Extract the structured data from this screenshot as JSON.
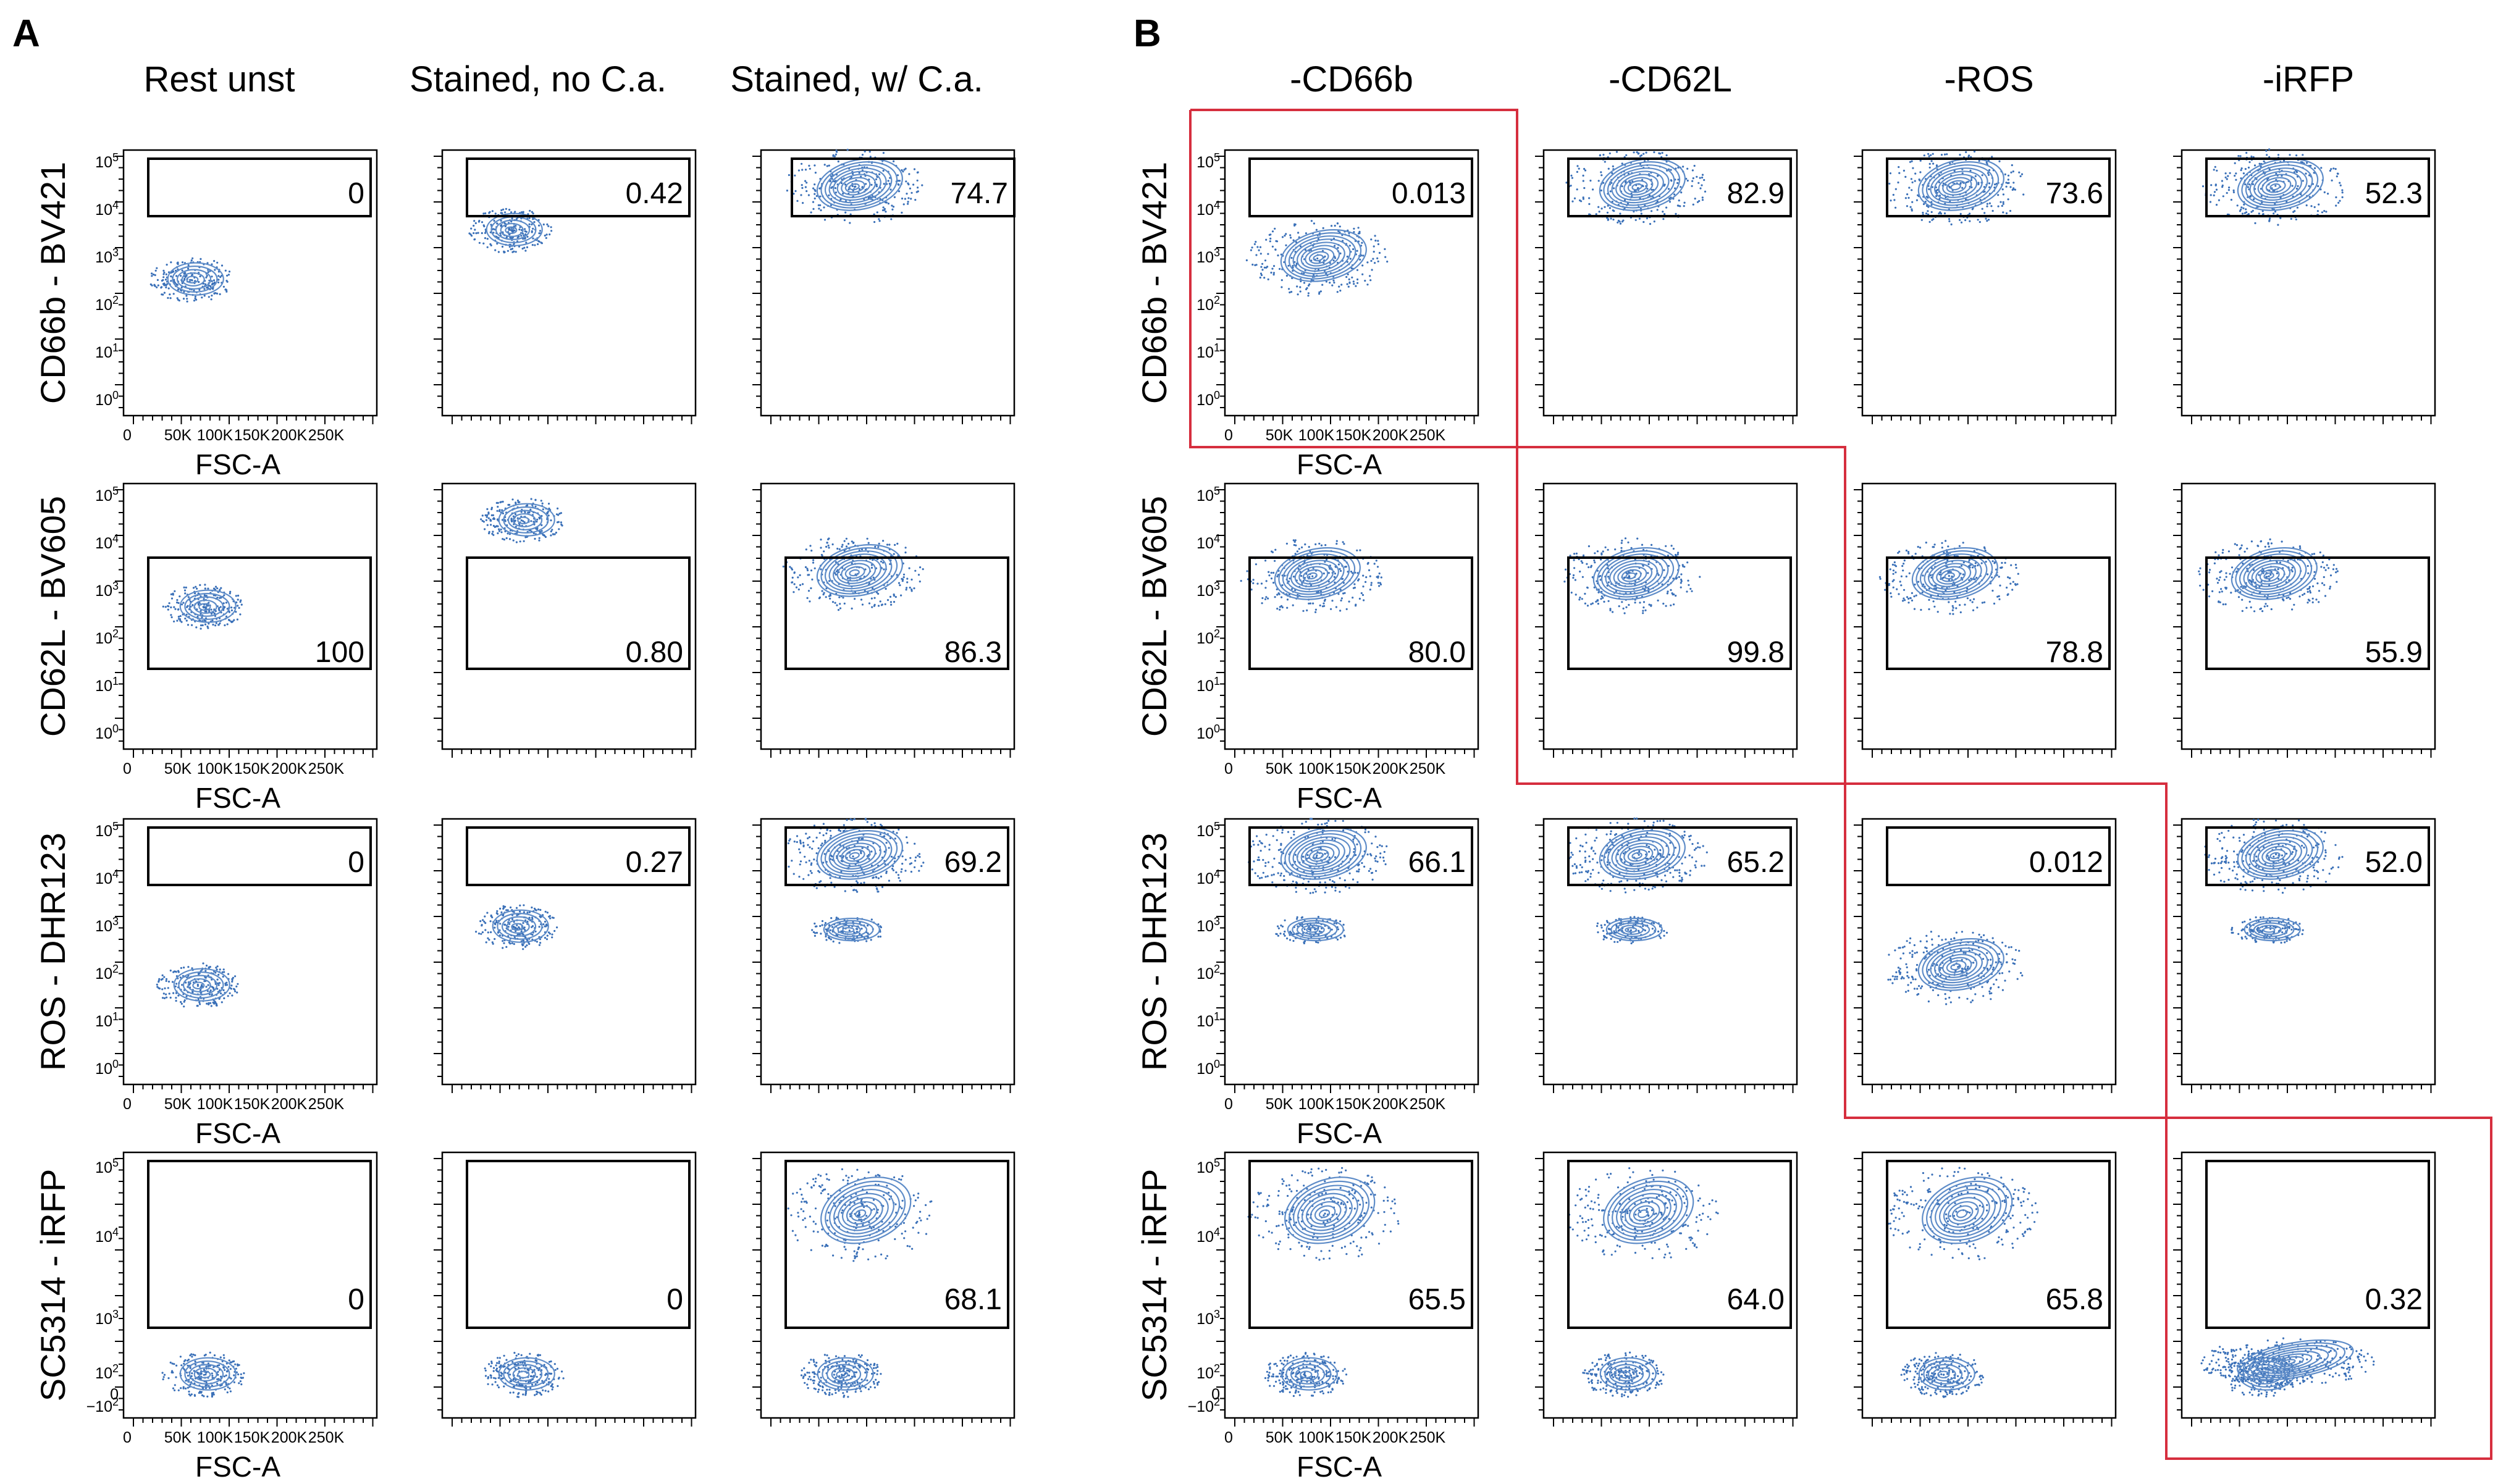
{
  "panels": [
    {
      "letter": "A",
      "columns": [
        "Rest unst",
        "Stained, no C.a.",
        "Stained, w/ C.a."
      ],
      "rows": [
        {
          "ylabel": "CD66b - BV421",
          "gates": [
            "0",
            "0.42",
            "74.7"
          ]
        },
        {
          "ylabel": "CD62L - BV605",
          "gates": [
            "100",
            "0.80",
            "86.3"
          ]
        },
        {
          "ylabel": "ROS - DHR123",
          "gates": [
            "0",
            "0.27",
            "69.2"
          ]
        },
        {
          "ylabel": "SC5314 - iRFP",
          "gates": [
            "0",
            "0",
            "68.1"
          ]
        }
      ]
    },
    {
      "letter": "B",
      "columns": [
        "-CD66b",
        "-CD62L",
        "-ROS",
        "-iRFP"
      ],
      "rows": [
        {
          "ylabel": "CD66b - BV421",
          "gates": [
            "0.013",
            "82.9",
            "73.6",
            "52.3"
          ]
        },
        {
          "ylabel": "CD62L - BV605",
          "gates": [
            "80.0",
            "99.8",
            "78.8",
            "55.9"
          ]
        },
        {
          "ylabel": "ROS - DHR123",
          "gates": [
            "66.1",
            "65.2",
            "0.012",
            "52.0"
          ]
        },
        {
          "ylabel": "SC5314 - iRFP",
          "gates": [
            "65.5",
            "64.0",
            "65.8",
            "0.32"
          ]
        }
      ]
    }
  ],
  "x_axis": {
    "label": "FSC-A",
    "ticks": [
      "0",
      "50K",
      "100K",
      "150K",
      "200K",
      "250K"
    ]
  },
  "y_axis": {
    "log_ticks": [
      "10^5",
      "10^4",
      "10^3",
      "10^2",
      "10^1",
      "10^0"
    ],
    "irfp_ticks": [
      "10^5",
      "10^4",
      "10^3",
      "10^2",
      "0",
      "-10^2"
    ]
  },
  "colors": {
    "contour": "#5e8cc8",
    "dots": "#3a70b8",
    "highlight": "#d62e3e"
  }
}
